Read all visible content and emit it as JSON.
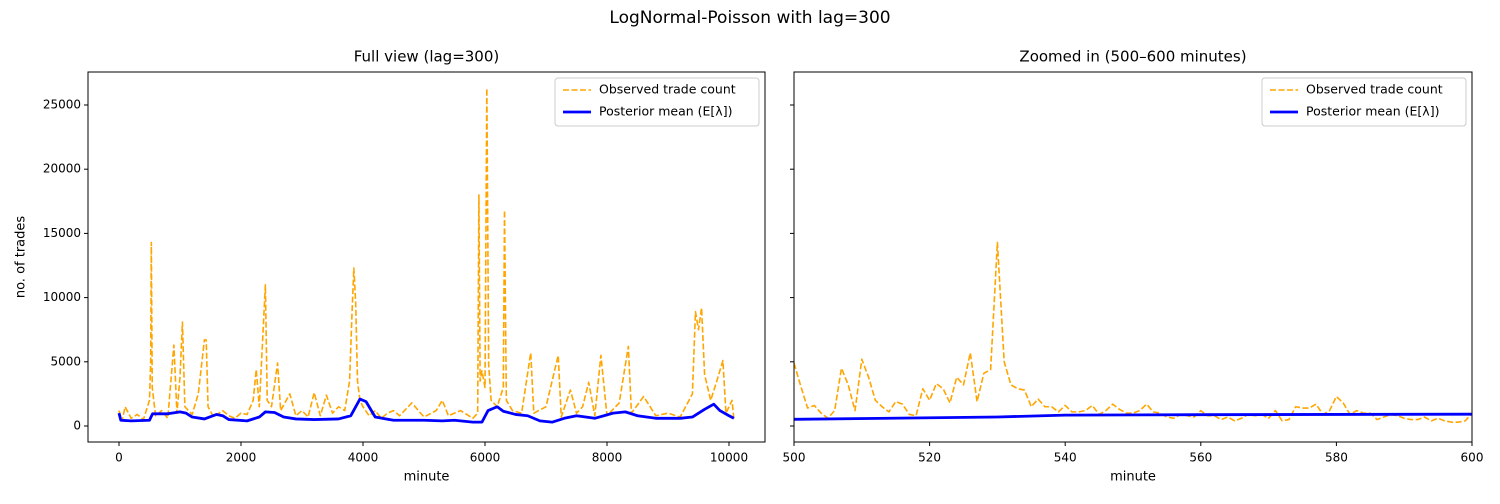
{
  "title": "LogNormal-Poisson with lag=300",
  "chart_data": [
    {
      "type": "line",
      "title": "Full view (lag=300)",
      "xlabel": "minute",
      "ylabel": "no. of trades",
      "xlim": [
        -508,
        10590
      ],
      "xticks": [
        0,
        2000,
        4000,
        6000,
        8000,
        10000
      ],
      "ylim": [
        -1246,
        27570
      ],
      "yticks": [
        0,
        5000,
        10000,
        15000,
        20000,
        25000
      ],
      "ytick_labels": true,
      "legend": "upper right",
      "series": [
        {
          "name": "Observed trade count",
          "color": "#ffa500",
          "linestyle": "dashed",
          "x": [
            0,
            50,
            100,
            200,
            300,
            400,
            500,
            520,
            530,
            545,
            600,
            700,
            800,
            900,
            950,
            1000,
            1040,
            1080,
            1200,
            1300,
            1400,
            1430,
            1460,
            1550,
            1700,
            1800,
            1900,
            2000,
            2100,
            2200,
            2250,
            2300,
            2400,
            2430,
            2500,
            2600,
            2650,
            2800,
            2900,
            3000,
            3100,
            3200,
            3300,
            3400,
            3500,
            3600,
            3700,
            3780,
            3820,
            3850,
            3880,
            3910,
            3950,
            4000,
            4100,
            4200,
            4300,
            4400,
            4500,
            4600,
            4800,
            5000,
            5200,
            5300,
            5400,
            5600,
            5800,
            5880,
            5900,
            5920,
            5950,
            6000,
            6030,
            6060,
            6100,
            6200,
            6300,
            6320,
            6350,
            6450,
            6600,
            6750,
            6800,
            7000,
            7200,
            7250,
            7400,
            7500,
            7600,
            7700,
            7800,
            7900,
            8000,
            8200,
            8350,
            8400,
            8600,
            8800,
            9000,
            9200,
            9400,
            9450,
            9500,
            9550,
            9600,
            9700,
            9800,
            9900,
            9950,
            10050,
            10080
          ],
          "values": [
            1200,
            400,
            1500,
            600,
            900,
            500,
            2000,
            5000,
            14300,
            3000,
            800,
            1200,
            600,
            6300,
            1000,
            3800,
            8100,
            1500,
            900,
            2500,
            6700,
            6700,
            1500,
            700,
            1200,
            800,
            600,
            1000,
            900,
            2000,
            4400,
            1500,
            11000,
            2000,
            1500,
            4900,
            1200,
            2500,
            800,
            1200,
            700,
            2600,
            800,
            2400,
            1000,
            1500,
            1200,
            3500,
            8800,
            12300,
            9600,
            3500,
            2000,
            1500,
            800,
            1200,
            600,
            1000,
            1200,
            800,
            1800,
            700,
            1200,
            2000,
            800,
            1200,
            600,
            1000,
            18000,
            3500,
            4300,
            3000,
            26300,
            4800,
            2000,
            1500,
            3000,
            16800,
            2000,
            1200,
            1000,
            5700,
            1000,
            1500,
            5500,
            700,
            2800,
            1000,
            1500,
            3400,
            800,
            5500,
            800,
            1800,
            6200,
            1000,
            2300,
            800,
            1000,
            700,
            2500,
            8900,
            7500,
            9200,
            4000,
            2000,
            3500,
            5100,
            1000,
            2000,
            500
          ]
        },
        {
          "name": "Posterior mean (E[λ])",
          "color": "#0000ff",
          "linestyle": "solid",
          "x": [
            0,
            30,
            200,
            500,
            550,
            800,
            1000,
            1100,
            1200,
            1400,
            1600,
            1700,
            1800,
            2100,
            2300,
            2400,
            2550,
            2700,
            2900,
            3200,
            3600,
            3800,
            3950,
            4050,
            4200,
            4500,
            5000,
            5300,
            5500,
            5800,
            5950,
            6050,
            6200,
            6300,
            6500,
            6700,
            6900,
            7100,
            7300,
            7500,
            7800,
            8100,
            8300,
            8500,
            8800,
            9200,
            9400,
            9600,
            9750,
            9850,
            10000,
            10080
          ],
          "values": [
            1000,
            450,
            400,
            450,
            950,
            950,
            1100,
            1000,
            700,
            550,
            900,
            800,
            500,
            400,
            700,
            1100,
            1050,
            700,
            550,
            500,
            550,
            800,
            2100,
            1900,
            700,
            450,
            450,
            400,
            450,
            300,
            300,
            1200,
            1500,
            1150,
            900,
            800,
            400,
            300,
            600,
            800,
            600,
            1000,
            1100,
            800,
            600,
            600,
            700,
            1300,
            1700,
            1200,
            800,
            600
          ]
        }
      ]
    },
    {
      "type": "line",
      "title": "Zoomed in (500–600 minutes)",
      "xlabel": "minute",
      "xlim": [
        500,
        600
      ],
      "xticks": [
        500,
        520,
        540,
        560,
        580,
        600
      ],
      "ylim": [
        -1246,
        27570
      ],
      "yticks": [
        0,
        5000,
        10000,
        15000,
        20000,
        25000
      ],
      "ytick_labels": false,
      "legend": "upper right",
      "series": [
        {
          "name": "Observed trade count",
          "color": "#ffa500",
          "linestyle": "dashed",
          "x": [
            500,
            501,
            502,
            503,
            504,
            505,
            506,
            507,
            508,
            509,
            510,
            511,
            512,
            513,
            514,
            515,
            516,
            517,
            518,
            519,
            520,
            521,
            522,
            523,
            524,
            525,
            526,
            527,
            528,
            529,
            530,
            531,
            532,
            533,
            534,
            535,
            536,
            537,
            538,
            539,
            540,
            541,
            542,
            543,
            544,
            545,
            546,
            547,
            548,
            549,
            550,
            551,
            552,
            553,
            554,
            555,
            556,
            557,
            558,
            559,
            560,
            561,
            562,
            563,
            564,
            565,
            566,
            567,
            568,
            569,
            570,
            571,
            572,
            573,
            574,
            575,
            576,
            577,
            578,
            579,
            580,
            581,
            582,
            583,
            584,
            585,
            586,
            587,
            588,
            589,
            590,
            591,
            592,
            593,
            594,
            595,
            596,
            597,
            598,
            599,
            600
          ],
          "values": [
            4900,
            3100,
            1400,
            1600,
            1000,
            600,
            1200,
            4500,
            3200,
            1200,
            5200,
            3800,
            2000,
            1500,
            1100,
            1900,
            1700,
            900,
            800,
            2900,
            2000,
            3300,
            2900,
            1800,
            3800,
            3200,
            5700,
            1900,
            4100,
            4400,
            14300,
            5000,
            3200,
            2900,
            2800,
            1500,
            2100,
            1500,
            1500,
            1100,
            1600,
            1100,
            1100,
            1200,
            1600,
            900,
            1200,
            1700,
            1300,
            1000,
            1000,
            1200,
            1700,
            1100,
            1000,
            700,
            600,
            900,
            800,
            700,
            1200,
            800,
            800,
            500,
            700,
            400,
            600,
            900,
            800,
            900,
            600,
            1200,
            400,
            500,
            1500,
            1400,
            1400,
            1700,
            900,
            1200,
            2300,
            1800,
            900,
            1200,
            1000,
            1000,
            500,
            700,
            900,
            800,
            600,
            500,
            500,
            700,
            400,
            600,
            400,
            300,
            300,
            400,
            1000
          ]
        },
        {
          "name": "Posterior mean (E[λ])",
          "color": "#0000ff",
          "linestyle": "solid",
          "x": [
            500,
            530,
            540,
            560,
            580,
            600
          ],
          "values": [
            520,
            700,
            850,
            880,
            900,
            920
          ]
        }
      ]
    }
  ]
}
